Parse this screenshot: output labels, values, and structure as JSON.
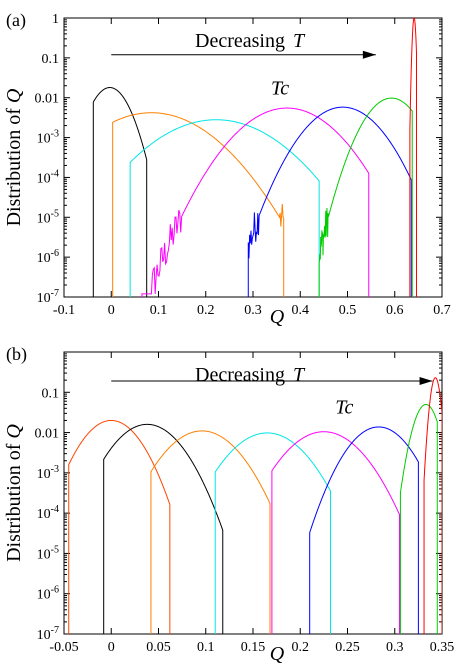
{
  "chart_data": [
    {
      "panel_label": "(a)",
      "type": "line",
      "xlabel": "Q",
      "ylabel": "Distribution of Q",
      "xlim": [
        -0.1,
        0.7
      ],
      "ylim": [
        1e-07,
        1
      ],
      "yscale": "log",
      "x_ticks": [
        "-0.1",
        "0",
        "0.1",
        "0.2",
        "0.3",
        "0.4",
        "0.5",
        "0.6",
        "0.7"
      ],
      "x_tick_values": [
        -0.1,
        0,
        0.1,
        0.2,
        0.3,
        0.4,
        0.5,
        0.6,
        0.7
      ],
      "y_ticks": [
        "10-7",
        "10-6",
        "10-5",
        "10-4",
        "10-3",
        "0.01",
        "0.1",
        "1"
      ],
      "y_tick_values": [
        1e-07,
        1e-06,
        1e-05,
        0.0001,
        0.001,
        0.01,
        0.1,
        1
      ],
      "annotation_text": "Decreasing",
      "annotation_symbol": "T",
      "tc_text": "Tc",
      "tc_position": [
        0.37,
        0.012
      ],
      "arrow": {
        "from": [
          0.0,
          0.12
        ],
        "to": [
          0.56,
          0.12
        ]
      },
      "series": [
        {
          "color": "#000000",
          "peak_x": -0.003,
          "peak_y": 0.018,
          "sigma": 0.027,
          "x_min": -0.038,
          "x_max": 0.075
        },
        {
          "color": "#ff8000",
          "peak_x": 0.085,
          "peak_y": 0.0042,
          "sigma": 0.078,
          "x_min": 0.003,
          "x_max": 0.365
        },
        {
          "color": "#00e5e5",
          "peak_x": 0.222,
          "peak_y": 0.0028,
          "sigma": 0.082,
          "x_min": 0.04,
          "x_max": 0.44
        },
        {
          "color": "#ff00ff",
          "peak_x": 0.372,
          "peak_y": 0.0055,
          "sigma": 0.063,
          "x_min": 0.065,
          "x_max": 0.545
        },
        {
          "color": "#0000ff",
          "peak_x": 0.49,
          "peak_y": 0.0058,
          "sigma": 0.05,
          "x_min": 0.29,
          "x_max": 0.635
        },
        {
          "color": "#00cc00",
          "peak_x": 0.593,
          "peak_y": 0.0098,
          "sigma": 0.036,
          "x_min": 0.44,
          "x_max": 0.637
        },
        {
          "color": "#ff0000",
          "peak_x": 0.641,
          "peak_y": 1.0,
          "sigma": 0.0025,
          "x_min": 0.632,
          "x_max": 0.646
        }
      ]
    },
    {
      "panel_label": "(b)",
      "type": "line",
      "xlabel": "Q",
      "ylabel": "Distribution of Q",
      "xlim": [
        -0.05,
        0.35
      ],
      "ylim": [
        1e-07,
        1
      ],
      "yscale": "log",
      "x_ticks": [
        "-0.05",
        "0",
        "0.05",
        "0.1",
        "0.15",
        "0.2",
        "0.25",
        "0.3",
        "0.35"
      ],
      "x_tick_values": [
        -0.05,
        0,
        0.05,
        0.1,
        0.15,
        0.2,
        0.25,
        0.3,
        0.35
      ],
      "y_ticks": [
        "10-7",
        "10-6",
        "10-5",
        "10-4",
        "10-3",
        "0.01",
        "0.1"
      ],
      "y_tick_values": [
        1e-07,
        1e-06,
        1e-05,
        0.0001,
        0.001,
        0.01,
        0.1
      ],
      "annotation_text": "Decreasing",
      "annotation_symbol": "T",
      "tc_text": "Tc",
      "tc_position": [
        0.253,
        0.03
      ],
      "arrow": {
        "from": [
          0.0,
          0.19
        ],
        "to": [
          0.34,
          0.19
        ]
      },
      "series": [
        {
          "color": "#ff4500",
          "peak_x": 0.0,
          "peak_y": 0.02,
          "sigma": 0.02,
          "x_min": -0.045,
          "x_max": 0.062
        },
        {
          "color": "#000000",
          "peak_x": 0.038,
          "peak_y": 0.016,
          "sigma": 0.023,
          "x_min": -0.008,
          "x_max": 0.118
        },
        {
          "color": "#ff8000",
          "peak_x": 0.096,
          "peak_y": 0.011,
          "sigma": 0.025,
          "x_min": 0.042,
          "x_max": 0.168
        },
        {
          "color": "#00e5e5",
          "peak_x": 0.165,
          "peak_y": 0.0098,
          "sigma": 0.026,
          "x_min": 0.11,
          "x_max": 0.232
        },
        {
          "color": "#ff00ff",
          "peak_x": 0.225,
          "peak_y": 0.0105,
          "sigma": 0.026,
          "x_min": 0.17,
          "x_max": 0.305
        },
        {
          "color": "#0000ff",
          "peak_x": 0.283,
          "peak_y": 0.0138,
          "sigma": 0.021,
          "x_min": 0.21,
          "x_max": 0.325
        },
        {
          "color": "#00cc00",
          "peak_x": 0.333,
          "peak_y": 0.05,
          "sigma": 0.0085,
          "x_min": 0.306,
          "x_max": 0.345
        },
        {
          "color": "#ff0000",
          "peak_x": 0.343,
          "peak_y": 0.23,
          "sigma": 0.0035,
          "x_min": 0.331,
          "x_max": 0.35
        }
      ]
    }
  ]
}
